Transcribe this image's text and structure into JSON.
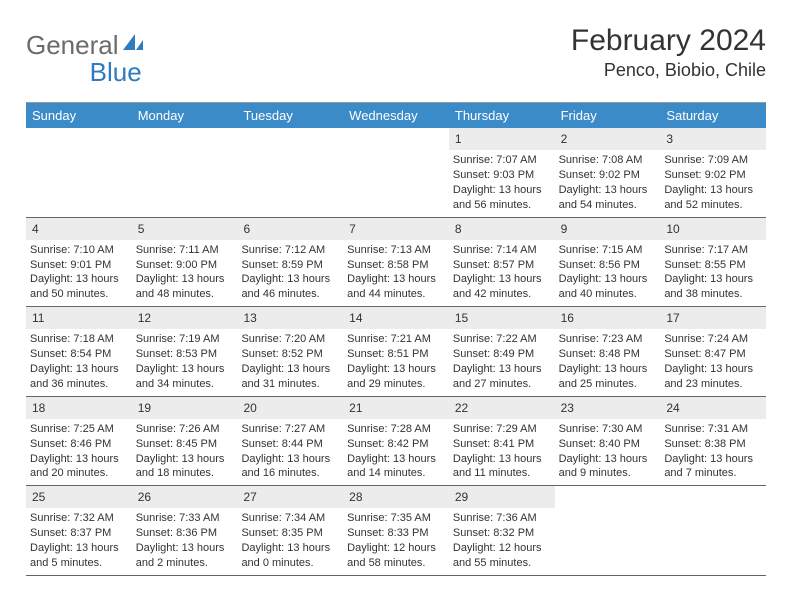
{
  "brand": {
    "part1": "General",
    "part2": "Blue"
  },
  "title": "February 2024",
  "location": "Penco, Biobio, Chile",
  "colors": {
    "header_bar": "#3b8bc9",
    "header_text": "#ffffff",
    "daynum_bg": "#ececec",
    "text": "#333333",
    "logo_gray": "#6b6b6b",
    "logo_blue": "#2f7bbf",
    "rule": "#666666"
  },
  "dow": [
    "Sunday",
    "Monday",
    "Tuesday",
    "Wednesday",
    "Thursday",
    "Friday",
    "Saturday"
  ],
  "layout": {
    "cols": 7,
    "rows": 5,
    "cell_fontsize": 11,
    "dow_fontsize": 13
  },
  "weeks": [
    [
      {
        "n": "",
        "empty": true
      },
      {
        "n": "",
        "empty": true
      },
      {
        "n": "",
        "empty": true
      },
      {
        "n": "",
        "empty": true
      },
      {
        "n": "1",
        "sr": "7:07 AM",
        "ss": "9:03 PM",
        "dl": "13 hours and 56 minutes."
      },
      {
        "n": "2",
        "sr": "7:08 AM",
        "ss": "9:02 PM",
        "dl": "13 hours and 54 minutes."
      },
      {
        "n": "3",
        "sr": "7:09 AM",
        "ss": "9:02 PM",
        "dl": "13 hours and 52 minutes."
      }
    ],
    [
      {
        "n": "4",
        "sr": "7:10 AM",
        "ss": "9:01 PM",
        "dl": "13 hours and 50 minutes."
      },
      {
        "n": "5",
        "sr": "7:11 AM",
        "ss": "9:00 PM",
        "dl": "13 hours and 48 minutes."
      },
      {
        "n": "6",
        "sr": "7:12 AM",
        "ss": "8:59 PM",
        "dl": "13 hours and 46 minutes."
      },
      {
        "n": "7",
        "sr": "7:13 AM",
        "ss": "8:58 PM",
        "dl": "13 hours and 44 minutes."
      },
      {
        "n": "8",
        "sr": "7:14 AM",
        "ss": "8:57 PM",
        "dl": "13 hours and 42 minutes."
      },
      {
        "n": "9",
        "sr": "7:15 AM",
        "ss": "8:56 PM",
        "dl": "13 hours and 40 minutes."
      },
      {
        "n": "10",
        "sr": "7:17 AM",
        "ss": "8:55 PM",
        "dl": "13 hours and 38 minutes."
      }
    ],
    [
      {
        "n": "11",
        "sr": "7:18 AM",
        "ss": "8:54 PM",
        "dl": "13 hours and 36 minutes."
      },
      {
        "n": "12",
        "sr": "7:19 AM",
        "ss": "8:53 PM",
        "dl": "13 hours and 34 minutes."
      },
      {
        "n": "13",
        "sr": "7:20 AM",
        "ss": "8:52 PM",
        "dl": "13 hours and 31 minutes."
      },
      {
        "n": "14",
        "sr": "7:21 AM",
        "ss": "8:51 PM",
        "dl": "13 hours and 29 minutes."
      },
      {
        "n": "15",
        "sr": "7:22 AM",
        "ss": "8:49 PM",
        "dl": "13 hours and 27 minutes."
      },
      {
        "n": "16",
        "sr": "7:23 AM",
        "ss": "8:48 PM",
        "dl": "13 hours and 25 minutes."
      },
      {
        "n": "17",
        "sr": "7:24 AM",
        "ss": "8:47 PM",
        "dl": "13 hours and 23 minutes."
      }
    ],
    [
      {
        "n": "18",
        "sr": "7:25 AM",
        "ss": "8:46 PM",
        "dl": "13 hours and 20 minutes."
      },
      {
        "n": "19",
        "sr": "7:26 AM",
        "ss": "8:45 PM",
        "dl": "13 hours and 18 minutes."
      },
      {
        "n": "20",
        "sr": "7:27 AM",
        "ss": "8:44 PM",
        "dl": "13 hours and 16 minutes."
      },
      {
        "n": "21",
        "sr": "7:28 AM",
        "ss": "8:42 PM",
        "dl": "13 hours and 14 minutes."
      },
      {
        "n": "22",
        "sr": "7:29 AM",
        "ss": "8:41 PM",
        "dl": "13 hours and 11 minutes."
      },
      {
        "n": "23",
        "sr": "7:30 AM",
        "ss": "8:40 PM",
        "dl": "13 hours and 9 minutes."
      },
      {
        "n": "24",
        "sr": "7:31 AM",
        "ss": "8:38 PM",
        "dl": "13 hours and 7 minutes."
      }
    ],
    [
      {
        "n": "25",
        "sr": "7:32 AM",
        "ss": "8:37 PM",
        "dl": "13 hours and 5 minutes."
      },
      {
        "n": "26",
        "sr": "7:33 AM",
        "ss": "8:36 PM",
        "dl": "13 hours and 2 minutes."
      },
      {
        "n": "27",
        "sr": "7:34 AM",
        "ss": "8:35 PM",
        "dl": "13 hours and 0 minutes."
      },
      {
        "n": "28",
        "sr": "7:35 AM",
        "ss": "8:33 PM",
        "dl": "12 hours and 58 minutes."
      },
      {
        "n": "29",
        "sr": "7:36 AM",
        "ss": "8:32 PM",
        "dl": "12 hours and 55 minutes."
      },
      {
        "n": "",
        "empty": true
      },
      {
        "n": "",
        "empty": true
      }
    ]
  ],
  "labels": {
    "sunrise": "Sunrise: ",
    "sunset": "Sunset: ",
    "daylight": "Daylight: "
  }
}
